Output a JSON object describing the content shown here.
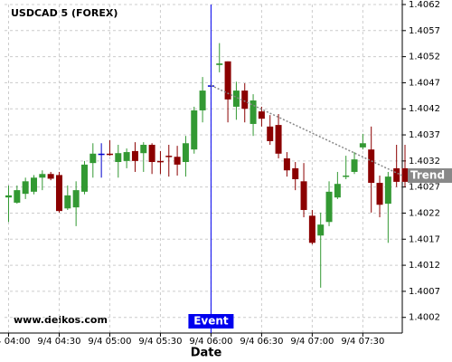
{
  "chart_data": {
    "type": "candlestick",
    "title": "USDCAD 5 (FOREX)",
    "x_label": "Date",
    "watermark": "www.delkos.com",
    "categories": [
      "9/4 04:00",
      null,
      null,
      null,
      null,
      null,
      "9/4 04:30",
      null,
      null,
      null,
      null,
      null,
      "9/4 05:00",
      null,
      null,
      null,
      null,
      null,
      "9/4 05:30",
      null,
      null,
      null,
      null,
      null,
      "9/4 06:00",
      null,
      null,
      null,
      null,
      null,
      "9/4 06:30",
      null,
      null,
      null,
      null,
      null,
      "9/4 07:00",
      null,
      null,
      null,
      null,
      null,
      "9/4 07:30",
      null,
      null,
      null,
      null,
      null
    ],
    "series": [
      {
        "up_color": "#339933",
        "down_color": "#8b0000",
        "flat_color": "#0000cc",
        "open": [
          1.4025,
          1.4024,
          1.40257,
          1.40261,
          1.40288,
          1.40295,
          1.40293,
          1.40229,
          1.40231,
          1.40261,
          1.40316,
          1.40334,
          1.40334,
          1.40318,
          1.4032,
          1.40339,
          1.40335,
          1.40351,
          1.4032,
          1.4033,
          1.40328,
          1.40318,
          1.40342,
          1.40417,
          1.40465,
          1.40504,
          1.40511,
          1.40424,
          1.40455,
          1.40391,
          1.40415,
          1.40386,
          1.40389,
          1.40325,
          1.40306,
          1.40281,
          1.40215,
          1.40177,
          1.40203,
          1.4025,
          1.4029,
          1.40299,
          1.40346,
          1.40342,
          1.40278,
          1.40238,
          1.40306,
          1.40306
        ],
        "high": [
          1.40273,
          1.40273,
          1.40288,
          1.40293,
          1.40302,
          1.40299,
          1.40299,
          1.40273,
          1.40281,
          1.4032,
          1.40354,
          1.40354,
          1.4036,
          1.40351,
          1.40344,
          1.40356,
          1.40356,
          1.40354,
          1.40339,
          1.40351,
          1.40349,
          1.40368,
          1.40424,
          1.40481,
          1.40467,
          1.40546,
          1.40511,
          1.40472,
          1.40469,
          1.40448,
          1.40424,
          1.40408,
          1.4041,
          1.40337,
          1.40318,
          1.40316,
          1.40226,
          1.40221,
          1.40281,
          1.40299,
          1.4033,
          1.40337,
          1.40372,
          1.40386,
          1.40292,
          1.40299,
          1.40351,
          1.40351
        ],
        "low": [
          1.40203,
          1.40238,
          1.40247,
          1.40256,
          1.40264,
          1.40283,
          1.40221,
          1.40226,
          1.40195,
          1.40256,
          1.40288,
          1.40288,
          1.4033,
          1.40288,
          1.40306,
          1.40299,
          1.40299,
          1.40295,
          1.40295,
          1.4029,
          1.40292,
          1.4029,
          1.40334,
          1.40394,
          1.40463,
          1.4049,
          1.40394,
          1.40399,
          1.40394,
          1.40368,
          1.40386,
          1.40351,
          1.40325,
          1.4029,
          1.40264,
          1.40212,
          1.4016,
          1.40077,
          1.40195,
          1.40247,
          1.40285,
          1.40295,
          1.40342,
          1.40221,
          1.40212,
          1.40163,
          1.4027,
          1.4027
        ],
        "close": [
          1.40254,
          1.40264,
          1.40281,
          1.40288,
          1.40295,
          1.40286,
          1.40224,
          1.40254,
          1.40264,
          1.40313,
          1.40334,
          1.40334,
          1.40332,
          1.40335,
          1.40337,
          1.4032,
          1.40351,
          1.40318,
          1.40318,
          1.40328,
          1.40313,
          1.40354,
          1.40417,
          1.40455,
          1.40465,
          1.40507,
          1.40438,
          1.40455,
          1.4042,
          1.40436,
          1.40401,
          1.40358,
          1.40334,
          1.40302,
          1.40285,
          1.40226,
          1.40163,
          1.40198,
          1.40261,
          1.40276,
          1.40292,
          1.40323,
          1.40354,
          1.40278,
          1.40236,
          1.4029,
          1.4028,
          1.4028
        ]
      }
    ],
    "event": {
      "label": "Event",
      "x": "9/4 06:00",
      "color": "#0000ee"
    },
    "trend": {
      "label": "Trend",
      "x": "9/4 06:00",
      "start": 1.40465,
      "end": 1.40292,
      "color": "#888888"
    },
    "ylim": [
      1.3999,
      1.4062
    ],
    "yticks": [
      1.4002,
      1.4007,
      1.4012,
      1.4017,
      1.4022,
      1.4027,
      1.4032,
      1.4037,
      1.4042,
      1.4047,
      1.4052,
      1.4057,
      1.4062
    ],
    "grid": true
  }
}
